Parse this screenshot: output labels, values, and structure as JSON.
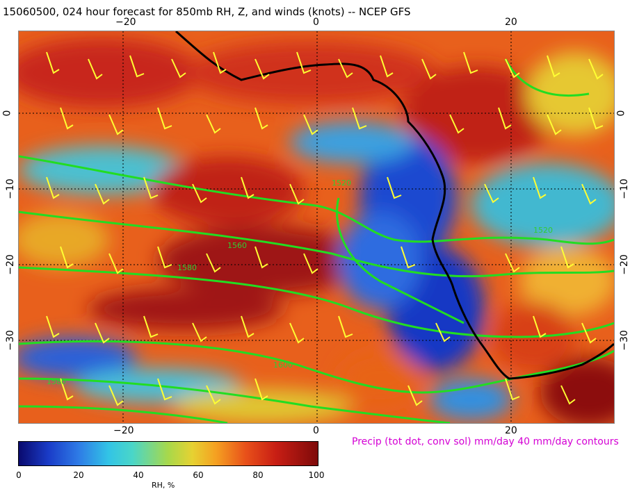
{
  "title": "15060500, 024 hour forecast for 850mb RH, Z, and winds (knots)  -- NCEP GFS",
  "top_axis": [
    "−20",
    "0",
    "20"
  ],
  "bottom_axis": [
    "−20",
    "0",
    "20"
  ],
  "left_axis": [
    "0",
    "−10",
    "−20",
    "−30"
  ],
  "right_axis": [
    "0",
    "−10",
    "−20",
    "−30"
  ],
  "contour_labels": [
    "1520",
    "1560",
    "1580",
    "1600",
    "1520",
    "1580"
  ],
  "precip_note": "Precip (tot dot, conv sol) mm/day 40 mm/day contours",
  "colorbar": {
    "ticks": [
      "0",
      "20",
      "40",
      "60",
      "80",
      "100"
    ],
    "label": "RH, %"
  },
  "colors": {
    "contour": "#22dd22",
    "wind_barb": "#ffff33",
    "coast": "#000000",
    "precip_text": "#d400d4"
  }
}
